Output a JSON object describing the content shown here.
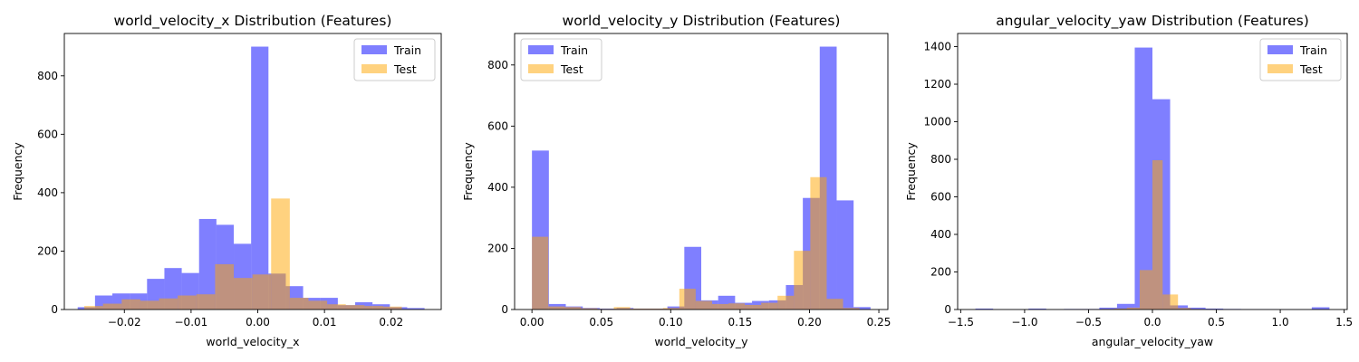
{
  "figure": {
    "background": "#ffffff"
  },
  "chart_data": [
    {
      "type": "bar",
      "title": "world_velocity_x Distribution (Features)",
      "xlabel": "world_velocity_x",
      "ylabel": "Frequency",
      "xlim": [
        -0.029,
        0.0275
      ],
      "ylim": [
        0,
        945
      ],
      "xticks": [
        -0.02,
        -0.01,
        0.0,
        0.01,
        0.02
      ],
      "xtick_labels": [
        "−0.02",
        "−0.01",
        "0.00",
        "0.01",
        "0.02"
      ],
      "yticks": [
        0,
        200,
        400,
        600,
        800
      ],
      "ytick_labels": [
        "0",
        "200",
        "400",
        "600",
        "800"
      ],
      "legend": "top-right",
      "series": [
        {
          "name": "Train",
          "color": "#0000ff",
          "alpha": 0.5,
          "bin_edges": [
            -0.027,
            -0.0244,
            -0.0218,
            -0.0192,
            -0.0166,
            -0.014,
            -0.0114,
            -0.0088,
            -0.0062,
            -0.0036,
            -0.001,
            0.0016,
            0.0042,
            0.0068,
            0.0094,
            0.012,
            0.0146,
            0.0172,
            0.0198,
            0.0224,
            0.025
          ],
          "values": [
            8,
            48,
            55,
            55,
            105,
            142,
            125,
            310,
            290,
            225,
            900,
            123,
            80,
            40,
            40,
            15,
            25,
            18,
            8,
            5
          ]
        },
        {
          "name": "Test",
          "color": "#ffa500",
          "alpha": 0.5,
          "bin_edges": [
            -0.026,
            -0.0232,
            -0.0204,
            -0.0176,
            -0.0148,
            -0.012,
            -0.0092,
            -0.0064,
            -0.0036,
            -0.0008,
            0.002,
            0.0048,
            0.0076,
            0.0104,
            0.0132,
            0.016,
            0.0188,
            0.0216
          ],
          "values": [
            12,
            20,
            35,
            30,
            38,
            48,
            52,
            155,
            108,
            120,
            380,
            40,
            30,
            18,
            15,
            12,
            10
          ]
        }
      ]
    },
    {
      "type": "bar",
      "title": "world_velocity_y Distribution (Features)",
      "xlabel": "world_velocity_y",
      "ylabel": "Frequency",
      "xlim": [
        -0.0125,
        0.2565
      ],
      "ylim": [
        0,
        903
      ],
      "xticks": [
        0.0,
        0.05,
        0.1,
        0.15,
        0.2,
        0.25
      ],
      "xtick_labels": [
        "0.00",
        "0.05",
        "0.10",
        "0.15",
        "0.20",
        "0.25"
      ],
      "yticks": [
        0,
        200,
        400,
        600,
        800
      ],
      "ytick_labels": [
        "0",
        "200",
        "400",
        "600",
        "800"
      ],
      "legend": "top-left",
      "series": [
        {
          "name": "Train",
          "color": "#0000ff",
          "alpha": 0.5,
          "bin_edges": [
            0.0,
            0.0122,
            0.0244,
            0.0366,
            0.0488,
            0.061,
            0.0732,
            0.0854,
            0.0976,
            0.1098,
            0.122,
            0.1342,
            0.1464,
            0.1586,
            0.1708,
            0.183,
            0.1952,
            0.2074,
            0.2196,
            0.2318,
            0.244
          ],
          "values": [
            520,
            18,
            10,
            5,
            3,
            5,
            3,
            3,
            10,
            205,
            30,
            45,
            22,
            28,
            30,
            80,
            365,
            860,
            357,
            8
          ]
        },
        {
          "name": "Test",
          "color": "#ffa500",
          "alpha": 0.5,
          "bin_edges": [
            0.0,
            0.0118,
            0.0236,
            0.0354,
            0.0472,
            0.059,
            0.0708,
            0.0826,
            0.0944,
            0.1062,
            0.118,
            0.1298,
            0.1416,
            0.1534,
            0.1652,
            0.177,
            0.1888,
            0.2006,
            0.2124,
            0.2242,
            0.236
          ],
          "values": [
            238,
            10,
            8,
            4,
            2,
            8,
            3,
            3,
            5,
            68,
            28,
            18,
            20,
            15,
            22,
            45,
            192,
            433,
            35,
            5
          ]
        }
      ]
    },
    {
      "type": "bar",
      "title": "angular_velocity_yaw Distribution (Features)",
      "xlabel": "angular_velocity_yaw",
      "ylabel": "Frequency",
      "xlim": [
        -1.524,
        1.524
      ],
      "ylim": [
        0,
        1470
      ],
      "xticks": [
        -1.5,
        -1.0,
        -0.5,
        0.0,
        0.5,
        1.0,
        1.5
      ],
      "xtick_labels": [
        "−1.5",
        "−1.0",
        "−0.5",
        "0.0",
        "0.5",
        "1.0",
        "1.5"
      ],
      "yticks": [
        0,
        200,
        400,
        600,
        800,
        1000,
        1200,
        1400
      ],
      "ytick_labels": [
        "0",
        "200",
        "400",
        "600",
        "800",
        "1000",
        "1200",
        "1400"
      ],
      "legend": "top-right",
      "series": [
        {
          "name": "Train",
          "color": "#0000ff",
          "alpha": 0.5,
          "bin_edges": [
            -1.385,
            -1.2465,
            -1.108,
            -0.9695,
            -0.831,
            -0.6925,
            -0.554,
            -0.4155,
            -0.277,
            -0.1385,
            0.0,
            0.1385,
            0.277,
            0.4155,
            0.554,
            0.6925,
            0.831,
            0.9695,
            1.108,
            1.2465,
            1.385
          ],
          "values": [
            5,
            1,
            1,
            5,
            1,
            3,
            3,
            10,
            30,
            1395,
            1120,
            22,
            10,
            5,
            3,
            2,
            2,
            1,
            1,
            12
          ]
        },
        {
          "name": "Test",
          "color": "#ffa500",
          "alpha": 0.5,
          "bin_edges": [
            -0.6,
            -0.5,
            -0.4,
            -0.3,
            -0.2,
            -0.1,
            0.0,
            0.08,
            0.2,
            0.3,
            0.4,
            0.5
          ],
          "values": [
            2,
            2,
            3,
            5,
            10,
            210,
            795,
            80,
            8,
            3,
            2
          ]
        }
      ]
    }
  ]
}
